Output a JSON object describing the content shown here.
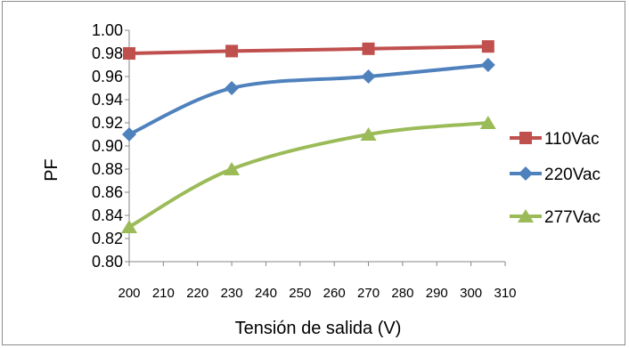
{
  "chart_data": {
    "type": "line",
    "title": "",
    "xlabel": "Tensión de salida (V)",
    "ylabel": "PF",
    "xlim": [
      200,
      310
    ],
    "ylim": [
      0.8,
      1.0
    ],
    "x_ticks": [
      "200",
      "210",
      "220",
      "230",
      "240",
      "250",
      "260",
      "270",
      "280",
      "290",
      "300",
      "310"
    ],
    "y_ticks": [
      "0.80",
      "0.82",
      "0.84",
      "0.86",
      "0.88",
      "0.90",
      "0.92",
      "0.94",
      "0.96",
      "0.98",
      "1.00"
    ],
    "grid": false,
    "smooth": true,
    "legend_position": "right",
    "series": [
      {
        "name": "110Vac",
        "color": "#c0504d",
        "marker": "square",
        "x": [
          200,
          230,
          270,
          305
        ],
        "y": [
          0.98,
          0.982,
          0.984,
          0.986
        ]
      },
      {
        "name": "220Vac",
        "color": "#4f81bd",
        "marker": "diamond",
        "x": [
          200,
          230,
          270,
          305
        ],
        "y": [
          0.91,
          0.95,
          0.96,
          0.97
        ]
      },
      {
        "name": "277Vac",
        "color": "#9bbb59",
        "marker": "triangle",
        "x": [
          200,
          230,
          270,
          305
        ],
        "y": [
          0.83,
          0.88,
          0.91,
          0.92
        ]
      }
    ]
  }
}
